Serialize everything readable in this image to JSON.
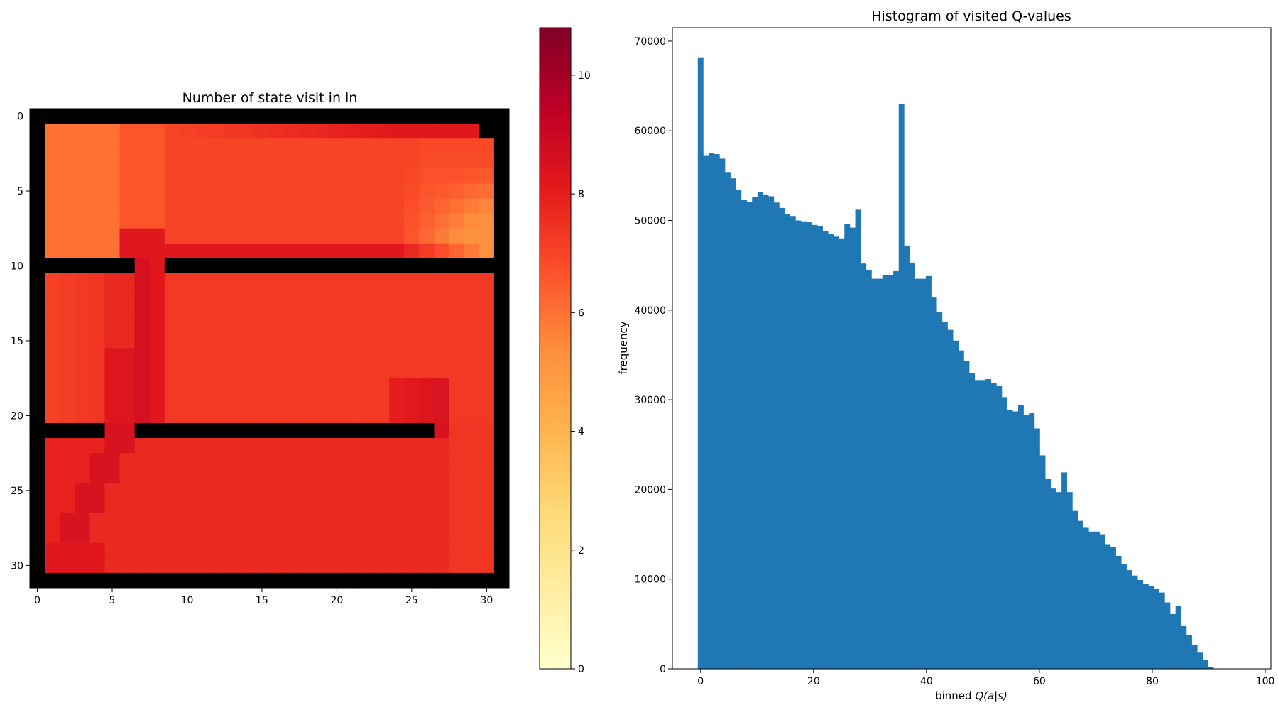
{
  "chart_data": [
    {
      "type": "heatmap",
      "title": "Number of state visit in ln",
      "grid_size": 32,
      "xlim": [
        -0.5,
        31.5
      ],
      "ylim": [
        31.5,
        -0.5
      ],
      "x_ticks": [
        0,
        5,
        10,
        15,
        20,
        25,
        30
      ],
      "y_ticks": [
        0,
        5,
        10,
        15,
        20,
        25,
        30
      ],
      "x_tick_labels": [
        "0",
        "5",
        "10",
        "15",
        "20",
        "25",
        "30"
      ],
      "y_tick_labels": [
        "0",
        "5",
        "10",
        "15",
        "20",
        "25",
        "30"
      ],
      "colormap": "YlOrRd",
      "colorbar": {
        "vmin": 0,
        "vmax": 10.8,
        "ticks": [
          0,
          2,
          4,
          6,
          8,
          10
        ],
        "tick_labels": [
          "0",
          "2",
          "4",
          "6",
          "8",
          "10"
        ]
      },
      "walls": {
        "border": true,
        "top_right_block": {
          "row": 1,
          "col": 30
        },
        "row_10_wall_cols": [
          [
            1,
            6
          ],
          [
            9,
            30
          ]
        ],
        "row_21_wall_cols": [
          [
            1,
            4
          ],
          [
            7,
            26
          ]
        ]
      },
      "approx_values": {
        "room_top_left": 6.0,
        "room_top_middle": 7.0,
        "room_top_right": 6.2,
        "corridor_col_7_8": 8.6,
        "room_middle": 7.3,
        "room_bottom": 7.7,
        "diagonal_path_bottom": 8.5,
        "max": 8.8,
        "min": 5.2
      }
    },
    {
      "type": "bar",
      "title": "Histogram of visited Q-values",
      "xlabel_prefix": "binned ",
      "xlabel_math": "Q(a|s)",
      "ylabel": "frequency",
      "xlim": [
        -5,
        101
      ],
      "ylim": [
        0,
        71500
      ],
      "x_ticks": [
        0,
        20,
        40,
        60,
        80,
        100
      ],
      "x_tick_labels": [
        "0",
        "20",
        "40",
        "60",
        "80",
        "100"
      ],
      "y_ticks": [
        0,
        10000,
        20000,
        30000,
        40000,
        50000,
        60000,
        70000
      ],
      "y_tick_labels": [
        "0",
        "10000",
        "20000",
        "30000",
        "40000",
        "50000",
        "60000",
        "70000"
      ],
      "bar_color": "#1f77b4",
      "bin_start": -0.5,
      "bin_width": 0.9615,
      "values": [
        68200,
        57200,
        57500,
        57400,
        56900,
        55400,
        54700,
        53400,
        52300,
        52100,
        52600,
        53200,
        52900,
        52700,
        52000,
        51400,
        50700,
        50500,
        50000,
        49900,
        49800,
        49500,
        49400,
        48800,
        48500,
        48200,
        48000,
        49600,
        49200,
        51200,
        45200,
        44500,
        43500,
        43500,
        43900,
        43900,
        44400,
        63000,
        47200,
        45300,
        43500,
        43500,
        43800,
        41400,
        39800,
        38700,
        37800,
        36600,
        35500,
        34300,
        33000,
        32200,
        32200,
        32300,
        31900,
        31600,
        30300,
        28900,
        28700,
        29400,
        28300,
        28500,
        26800,
        23800,
        21200,
        20100,
        19700,
        21900,
        19700,
        17600,
        16500,
        15800,
        15300,
        15300,
        15000,
        13900,
        13600,
        12600,
        11700,
        11000,
        10400,
        9900,
        9500,
        9200,
        8900,
        8500,
        7400,
        6100,
        7000,
        4800,
        3800,
        2700,
        1800,
        1000,
        200
      ]
    }
  ]
}
